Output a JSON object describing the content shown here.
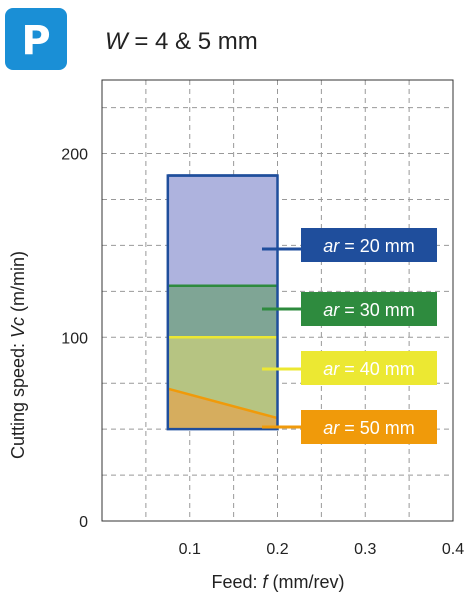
{
  "header": {
    "badge_letter": "P",
    "badge_color": "#1a8fd6",
    "title_var": "W",
    "title_rest": " = 4 & 5 mm"
  },
  "chart_data": {
    "type": "area",
    "xlabel_prefix": "Feed: ",
    "xlabel_var": "f",
    "xlabel_unit": " (mm/rev)",
    "ylabel_prefix": "Cutting speed: ",
    "ylabel_var": "Vc",
    "ylabel_unit": " (m/min)",
    "xlim": [
      0,
      0.4
    ],
    "ylim": [
      0,
      240
    ],
    "x_ticks": [
      0.1,
      0.2,
      0.3,
      0.4
    ],
    "x_tick_labels": [
      "0.1",
      "0.2",
      "0.3",
      "0.4"
    ],
    "y_ticks": [
      0,
      100,
      200
    ],
    "y_tick_labels": [
      "0",
      "100",
      "200"
    ],
    "grid": true,
    "region": {
      "x": [
        0.075,
        0.2
      ],
      "y_min": 50
    },
    "series": [
      {
        "var": "ar",
        "label": " = 20 mm",
        "color": "#1f4e9c",
        "fill": "#aeb3de",
        "x": [
          0.075,
          0.2
        ],
        "y": [
          188,
          188
        ]
      },
      {
        "var": "ar",
        "label": " = 30 mm",
        "color": "#2e8b3e",
        "fill": "#7fa595",
        "x": [
          0.075,
          0.2
        ],
        "y": [
          128,
          128
        ]
      },
      {
        "var": "ar",
        "label": " = 40 mm",
        "color": "#ece832",
        "fill": "#b6c482",
        "x": [
          0.075,
          0.2
        ],
        "y": [
          100,
          100
        ]
      },
      {
        "var": "ar",
        "label": " = 50 mm",
        "color": "#f09a0a",
        "fill": "#d6ad5e",
        "x": [
          0.075,
          0.2
        ],
        "y": [
          72,
          56
        ]
      }
    ]
  }
}
